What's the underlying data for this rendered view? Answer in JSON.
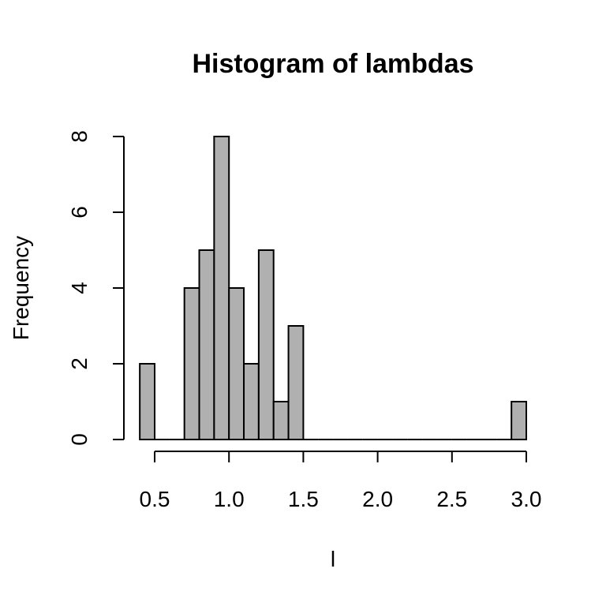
{
  "chart_data": {
    "type": "bar",
    "title": "Histogram of lambdas",
    "xlabel": "l",
    "ylabel": "Frequency",
    "xlim": [
      0.4,
      3.0
    ],
    "ylim": [
      0,
      8
    ],
    "bin_width": 0.1,
    "x_ticks": [
      0.5,
      1.0,
      1.5,
      2.0,
      2.5,
      3.0
    ],
    "x_tick_labels": [
      "0.5",
      "1.0",
      "1.5",
      "2.0",
      "2.5",
      "3.0"
    ],
    "y_ticks": [
      0,
      2,
      4,
      6,
      8
    ],
    "y_tick_labels": [
      "0",
      "2",
      "4",
      "6",
      "8"
    ],
    "bar_color": "#b0b0b0",
    "grid": false,
    "bins": [
      {
        "start": 0.4,
        "end": 0.5,
        "count": 2
      },
      {
        "start": 0.5,
        "end": 0.6,
        "count": 0
      },
      {
        "start": 0.6,
        "end": 0.7,
        "count": 0
      },
      {
        "start": 0.7,
        "end": 0.8,
        "count": 4
      },
      {
        "start": 0.8,
        "end": 0.9,
        "count": 5
      },
      {
        "start": 0.9,
        "end": 1.0,
        "count": 8
      },
      {
        "start": 1.0,
        "end": 1.1,
        "count": 4
      },
      {
        "start": 1.1,
        "end": 1.2,
        "count": 2
      },
      {
        "start": 1.2,
        "end": 1.3,
        "count": 5
      },
      {
        "start": 1.3,
        "end": 1.4,
        "count": 1
      },
      {
        "start": 1.4,
        "end": 1.5,
        "count": 3
      },
      {
        "start": 1.5,
        "end": 1.6,
        "count": 0
      },
      {
        "start": 1.6,
        "end": 1.7,
        "count": 0
      },
      {
        "start": 1.7,
        "end": 1.8,
        "count": 0
      },
      {
        "start": 1.8,
        "end": 1.9,
        "count": 0
      },
      {
        "start": 1.9,
        "end": 2.0,
        "count": 0
      },
      {
        "start": 2.0,
        "end": 2.1,
        "count": 0
      },
      {
        "start": 2.1,
        "end": 2.2,
        "count": 0
      },
      {
        "start": 2.2,
        "end": 2.3,
        "count": 0
      },
      {
        "start": 2.3,
        "end": 2.4,
        "count": 0
      },
      {
        "start": 2.4,
        "end": 2.5,
        "count": 0
      },
      {
        "start": 2.5,
        "end": 2.6,
        "count": 0
      },
      {
        "start": 2.6,
        "end": 2.7,
        "count": 0
      },
      {
        "start": 2.7,
        "end": 2.8,
        "count": 0
      },
      {
        "start": 2.8,
        "end": 2.9,
        "count": 0
      },
      {
        "start": 2.9,
        "end": 3.0,
        "count": 1
      }
    ]
  }
}
